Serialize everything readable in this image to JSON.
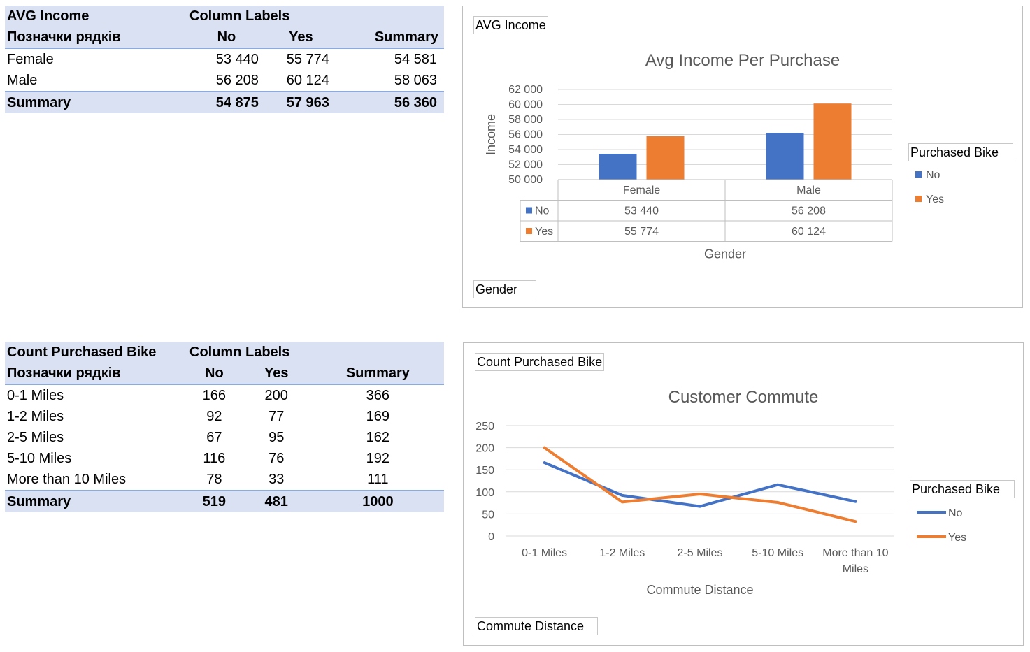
{
  "table1": {
    "header": {
      "corner": "AVG Income",
      "column_labels": "Column Labels",
      "row_labels": "Позначки рядків",
      "cols": [
        "No",
        "Yes",
        "Summary"
      ]
    },
    "rows": [
      {
        "label": "Female",
        "values": [
          "53 440",
          "55 774",
          "54 581"
        ]
      },
      {
        "label": "Male",
        "values": [
          "56 208",
          "60 124",
          "58 063"
        ]
      }
    ],
    "summary": {
      "label": "Summary",
      "values": [
        "54 875",
        "57 963",
        "56 360"
      ]
    }
  },
  "table2": {
    "header": {
      "corner": "Count Purchased Bike",
      "column_labels": "Column Labels",
      "row_labels": "Позначки рядків",
      "cols": [
        "No",
        "Yes",
        "Summary"
      ]
    },
    "rows": [
      {
        "label": "0-1 Miles",
        "values": [
          "166",
          "200",
          "366"
        ]
      },
      {
        "label": "1-2 Miles",
        "values": [
          "92",
          "77",
          "169"
        ]
      },
      {
        "label": "2-5 Miles",
        "values": [
          "67",
          "95",
          "162"
        ]
      },
      {
        "label": "5-10 Miles",
        "values": [
          "116",
          "76",
          "192"
        ]
      },
      {
        "label": "More than 10 Miles",
        "values": [
          "78",
          "33",
          "111"
        ]
      }
    ],
    "summary": {
      "label": "Summary",
      "values": [
        "519",
        "481",
        "1000"
      ]
    }
  },
  "chart1_buttons": {
    "value_field": "AVG Income",
    "axis_field": "Gender",
    "legend_field": "Purchased Bike"
  },
  "chart2_buttons": {
    "value_field": "Count Purchased Bike",
    "axis_field": "Commute Distance",
    "legend_field": "Purchased Bike"
  },
  "chart_data": [
    {
      "type": "bar",
      "title": "Avg Income Per Purchase",
      "xlabel": "Gender",
      "ylabel": "Income",
      "categories": [
        "Female",
        "Male"
      ],
      "series": [
        {
          "name": "No",
          "values": [
            53440,
            56208
          ],
          "labels": [
            "53 440",
            "56 208"
          ],
          "color": "#4472c4"
        },
        {
          "name": "Yes",
          "values": [
            55774,
            60124
          ],
          "labels": [
            "55 774",
            "60 124"
          ],
          "color": "#ed7d31"
        }
      ],
      "ylim": [
        50000,
        62000
      ],
      "yticks": [
        "50 000",
        "52 000",
        "54 000",
        "56 000",
        "58 000",
        "60 000",
        "62 000"
      ],
      "legend_title": "Purchased Bike",
      "legend_position": "right",
      "data_table": true,
      "grid": true
    },
    {
      "type": "line",
      "title": "Customer Commute",
      "xlabel": "Commute Distance",
      "ylabel": "",
      "categories": [
        "0-1 Miles",
        "1-2 Miles",
        "2-5 Miles",
        "5-10 Miles",
        "More than 10 Miles"
      ],
      "category_lines": [
        [
          "0-1 Miles"
        ],
        [
          "1-2 Miles"
        ],
        [
          "2-5 Miles"
        ],
        [
          "5-10 Miles"
        ],
        [
          "More than 10",
          "Miles"
        ]
      ],
      "series": [
        {
          "name": "No",
          "values": [
            166,
            92,
            67,
            116,
            78
          ],
          "color": "#4472c4"
        },
        {
          "name": "Yes",
          "values": [
            200,
            77,
            95,
            76,
            33
          ],
          "color": "#ed7d31"
        }
      ],
      "ylim": [
        0,
        250
      ],
      "yticks": [
        "0",
        "50",
        "100",
        "150",
        "200",
        "250"
      ],
      "legend_title": "Purchased Bike",
      "legend_position": "right",
      "grid": true
    }
  ]
}
